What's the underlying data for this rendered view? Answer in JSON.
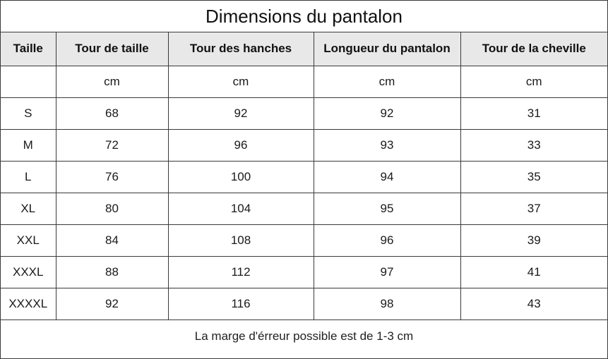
{
  "title": "Dimensions du pantalon",
  "headers": [
    "Taille",
    "Tour de taille",
    "Tour des hanches",
    "Longueur du pantalon",
    "Tour de la cheville"
  ],
  "rows": [
    [
      "",
      "cm",
      "cm",
      "cm",
      "cm"
    ],
    [
      "S",
      "68",
      "92",
      "92",
      "31"
    ],
    [
      "M",
      "72",
      "96",
      "93",
      "33"
    ],
    [
      "L",
      "76",
      "100",
      "94",
      "35"
    ],
    [
      "XL",
      "80",
      "104",
      "95",
      "37"
    ],
    [
      "XXL",
      "84",
      "108",
      "96",
      "39"
    ],
    [
      "XXXL",
      "88",
      "112",
      "97",
      "41"
    ],
    [
      "XXXXL",
      "92",
      "116",
      "98",
      "43"
    ]
  ],
  "footer": "La marge d'érreur possible est de 1-3 cm"
}
